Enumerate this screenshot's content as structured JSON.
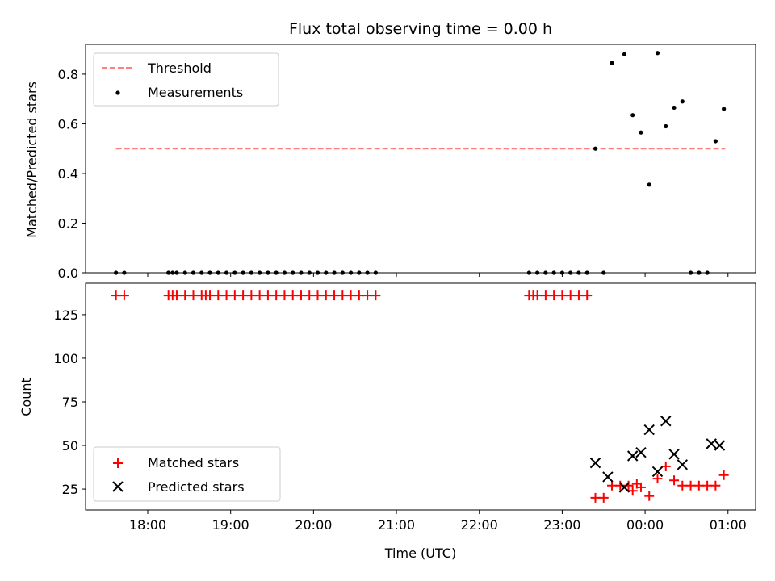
{
  "chart_data": [
    {
      "type": "scatter",
      "title": "Flux total observing time = 0.00 h",
      "ylabel": "Matched/Predicted stars",
      "xlabel": "",
      "xlim": [
        "17:15",
        "01:20"
      ],
      "ylim": [
        0,
        0.92
      ],
      "yticks": [
        0,
        0.2,
        0.4,
        0.6,
        0.8
      ],
      "ytick_labels": [
        "0.0",
        "0.2",
        "0.4",
        "0.6",
        "0.8"
      ],
      "legend_position": "upper-left",
      "grid": false,
      "series": [
        {
          "name": "Threshold",
          "kind": "dashed-line",
          "color": "#ff7f7f",
          "x": [
            "17:37",
            "00:58"
          ],
          "y": [
            0.5,
            0.5
          ]
        },
        {
          "name": "Measurements",
          "kind": "dots",
          "color": "#000000",
          "x": [
            "17:37",
            "17:43",
            "18:15",
            "18:18",
            "18:21",
            "18:27",
            "18:33",
            "18:39",
            "18:45",
            "18:51",
            "18:57",
            "19:03",
            "19:09",
            "19:15",
            "19:21",
            "19:27",
            "19:33",
            "19:39",
            "19:45",
            "19:51",
            "19:57",
            "20:03",
            "20:09",
            "20:15",
            "20:21",
            "20:27",
            "20:33",
            "20:39",
            "20:45",
            "22:36",
            "22:42",
            "22:48",
            "22:54",
            "23:00",
            "23:06",
            "23:12",
            "23:18",
            "23:24",
            "23:30",
            "23:36",
            "23:45",
            "23:51",
            "23:57",
            "00:03",
            "00:09",
            "00:15",
            "00:21",
            "00:27",
            "00:33",
            "00:39",
            "00:45",
            "00:51",
            "00:57"
          ],
          "y": [
            0,
            0,
            0,
            0,
            0,
            0,
            0,
            0,
            0,
            0,
            0,
            0,
            0,
            0,
            0,
            0,
            0,
            0,
            0,
            0,
            0,
            0,
            0,
            0,
            0,
            0,
            0,
            0,
            0,
            0,
            0,
            0,
            0,
            0,
            0,
            0,
            0,
            0.5,
            0,
            0.845,
            0.88,
            0.635,
            0.565,
            0.355,
            0.885,
            0.59,
            0.665,
            0.69,
            0,
            0,
            0,
            0.53,
            0.66
          ]
        }
      ]
    },
    {
      "type": "scatter",
      "title": "",
      "ylabel": "Count",
      "xlabel": "Time (UTC)",
      "xlim": [
        "17:15",
        "01:20"
      ],
      "ylim": [
        13,
        143
      ],
      "yticks": [
        25,
        50,
        75,
        100,
        125
      ],
      "ytick_labels": [
        "25",
        "50",
        "75",
        "100",
        "125"
      ],
      "xtick_labels": [
        "18:00",
        "19:00",
        "20:00",
        "21:00",
        "22:00",
        "23:00",
        "00:00",
        "01:00"
      ],
      "legend_position": "lower-left",
      "grid": false,
      "series": [
        {
          "name": "Matched stars",
          "kind": "plus",
          "color": "#ff0000",
          "x": [
            "17:37",
            "17:43",
            "18:15",
            "18:18",
            "18:21",
            "18:27",
            "18:33",
            "18:39",
            "18:42",
            "18:45",
            "18:51",
            "18:57",
            "19:03",
            "19:09",
            "19:15",
            "19:21",
            "19:27",
            "19:33",
            "19:39",
            "19:45",
            "19:51",
            "19:57",
            "20:03",
            "20:09",
            "20:15",
            "20:21",
            "20:27",
            "20:33",
            "20:39",
            "20:45",
            "22:36",
            "22:39",
            "22:42",
            "22:48",
            "22:54",
            "23:00",
            "23:06",
            "23:12",
            "23:18",
            "23:24",
            "23:30",
            "23:36",
            "23:42",
            "23:48",
            "23:51",
            "23:54",
            "23:57",
            "00:03",
            "00:09",
            "00:15",
            "00:21",
            "00:27",
            "00:33",
            "00:39",
            "00:45",
            "00:51",
            "00:57"
          ],
          "y": [
            136,
            136,
            136,
            136,
            136,
            136,
            136,
            136,
            136,
            136,
            136,
            136,
            136,
            136,
            136,
            136,
            136,
            136,
            136,
            136,
            136,
            136,
            136,
            136,
            136,
            136,
            136,
            136,
            136,
            136,
            136,
            136,
            136,
            136,
            136,
            136,
            136,
            136,
            136,
            20,
            20,
            27,
            27,
            27,
            24,
            28,
            26,
            21,
            31,
            38,
            30,
            27,
            27,
            27,
            27,
            27,
            33
          ]
        },
        {
          "name": "Predicted stars",
          "kind": "x",
          "color": "#000000",
          "x": [
            "23:24",
            "23:33",
            "23:45",
            "23:51",
            "23:57",
            "00:03",
            "00:09",
            "00:15",
            "00:21",
            "00:27",
            "00:48",
            "00:54"
          ],
          "y": [
            40,
            32,
            26,
            44,
            46,
            59,
            35,
            64,
            45,
            39,
            51,
            50
          ]
        }
      ]
    }
  ]
}
